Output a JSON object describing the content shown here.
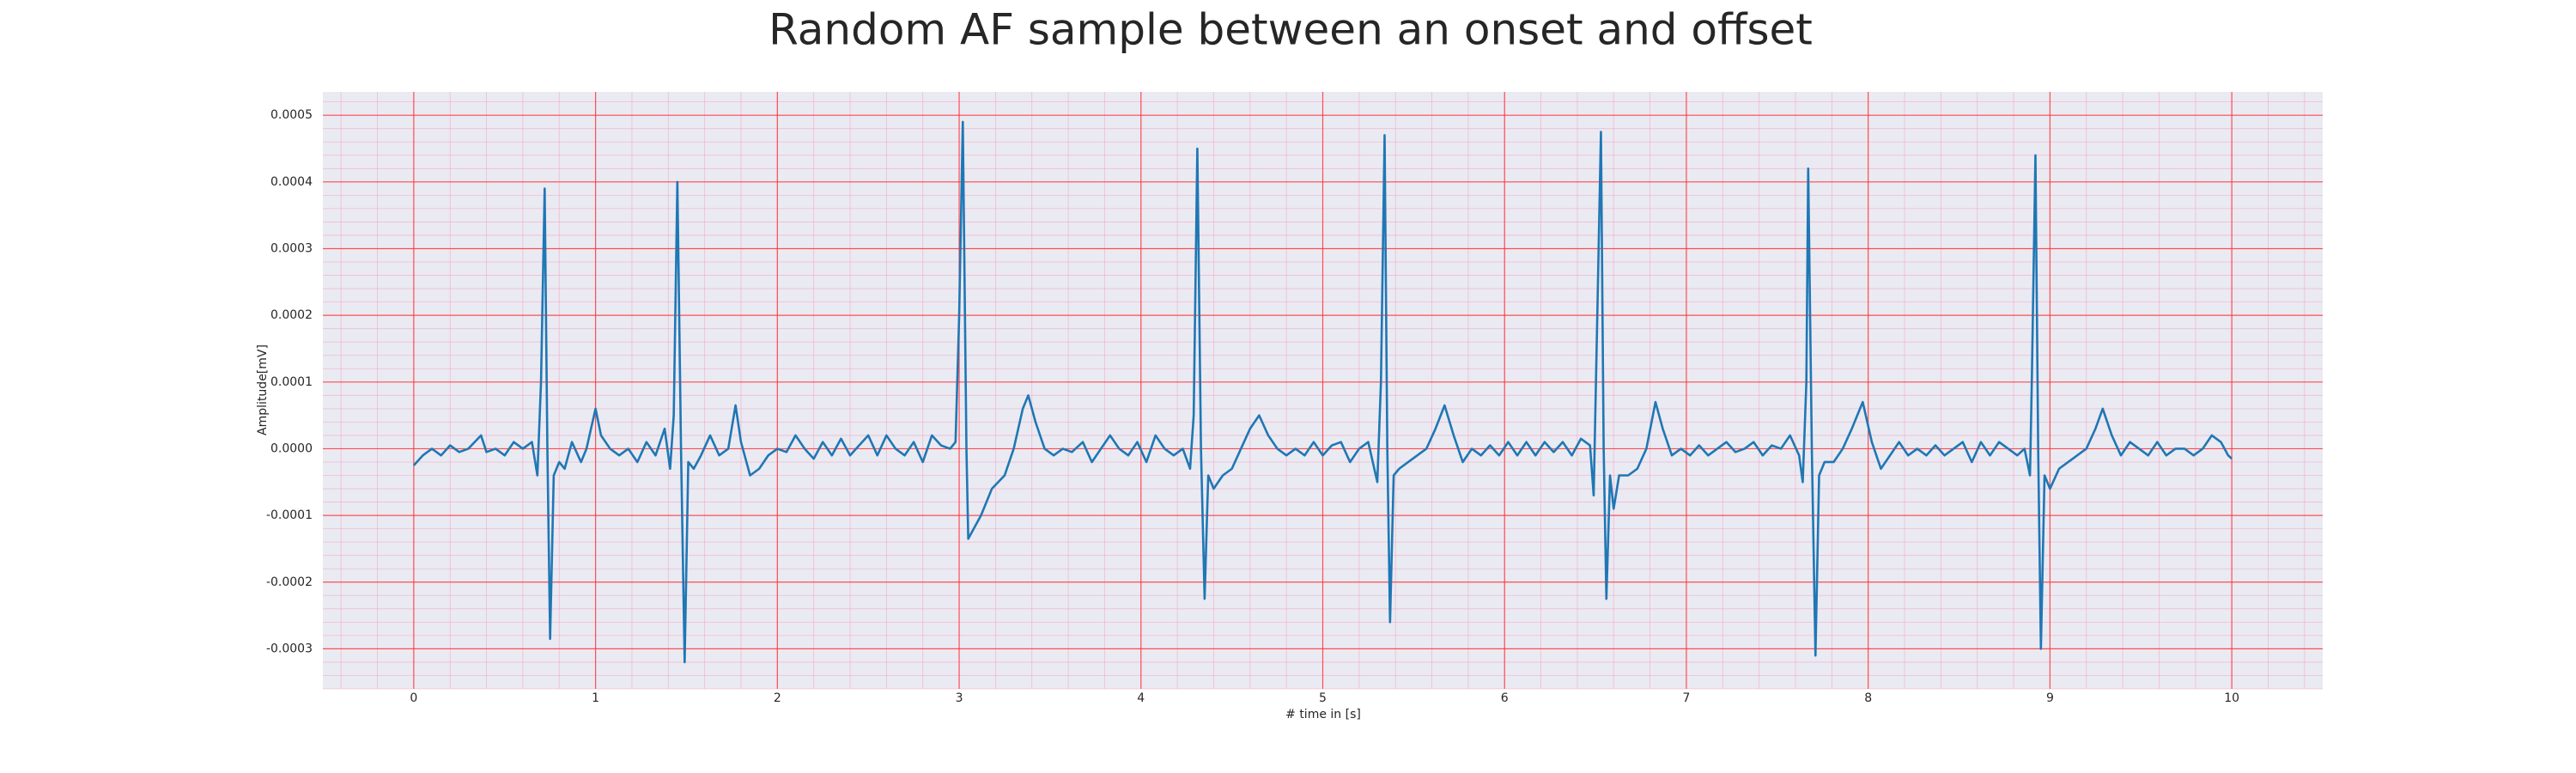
{
  "chart_data": {
    "type": "line",
    "title": "Random AF sample between an onset and offset",
    "xlabel": "# time in [s]",
    "ylabel": "Amplitude[mV]",
    "color": "#1f77b4",
    "xlim": [
      -0.5,
      10.5
    ],
    "ylim": [
      -0.00036,
      0.000535
    ],
    "xticks": [
      0,
      1,
      2,
      3,
      4,
      5,
      6,
      7,
      8,
      9,
      10
    ],
    "yticks": [
      {
        "value": -0.0003,
        "label": "-0.0003"
      },
      {
        "value": -0.0002,
        "label": "-0.0002"
      },
      {
        "value": -0.0001,
        "label": "-0.0001"
      },
      {
        "value": 0,
        "label": "0.0000"
      },
      {
        "value": 0.0001,
        "label": "0.0001"
      },
      {
        "value": 0.0002,
        "label": "0.0002"
      },
      {
        "value": 0.0003,
        "label": "0.0003"
      },
      {
        "value": 0.0004,
        "label": "0.0004"
      },
      {
        "value": 0.0005,
        "label": "0.0005"
      }
    ],
    "grid": true,
    "minor_grid": true,
    "minor_divisions": 5,
    "x": [
      0.0,
      0.05,
      0.1,
      0.15,
      0.2,
      0.25,
      0.3,
      0.37,
      0.4,
      0.45,
      0.5,
      0.55,
      0.6,
      0.65,
      0.68,
      0.7,
      0.72,
      0.735,
      0.75,
      0.77,
      0.8,
      0.83,
      0.87,
      0.92,
      0.95,
      1.0,
      1.03,
      1.08,
      1.13,
      1.18,
      1.23,
      1.28,
      1.33,
      1.38,
      1.41,
      1.43,
      1.45,
      1.47,
      1.49,
      1.51,
      1.54,
      1.58,
      1.63,
      1.68,
      1.73,
      1.77,
      1.8,
      1.85,
      1.9,
      1.95,
      2.0,
      2.05,
      2.1,
      2.15,
      2.2,
      2.25,
      2.3,
      2.35,
      2.4,
      2.45,
      2.5,
      2.55,
      2.6,
      2.65,
      2.7,
      2.75,
      2.8,
      2.85,
      2.9,
      2.95,
      2.98,
      3.0,
      3.02,
      3.04,
      3.05,
      3.08,
      3.12,
      3.18,
      3.25,
      3.3,
      3.35,
      3.38,
      3.42,
      3.47,
      3.52,
      3.57,
      3.62,
      3.68,
      3.73,
      3.78,
      3.83,
      3.88,
      3.93,
      3.98,
      4.03,
      4.08,
      4.13,
      4.18,
      4.23,
      4.27,
      4.29,
      4.31,
      4.33,
      4.35,
      4.37,
      4.4,
      4.45,
      4.5,
      4.55,
      4.6,
      4.65,
      4.7,
      4.75,
      4.8,
      4.85,
      4.9,
      4.95,
      5.0,
      5.05,
      5.1,
      5.15,
      5.2,
      5.25,
      5.3,
      5.32,
      5.34,
      5.355,
      5.37,
      5.39,
      5.42,
      5.47,
      5.52,
      5.57,
      5.62,
      5.67,
      5.72,
      5.77,
      5.82,
      5.87,
      5.92,
      5.97,
      6.02,
      6.07,
      6.12,
      6.17,
      6.22,
      6.27,
      6.32,
      6.37,
      6.42,
      6.47,
      6.49,
      6.51,
      6.53,
      6.545,
      6.56,
      6.58,
      6.6,
      6.63,
      6.68,
      6.73,
      6.78,
      6.83,
      6.87,
      6.92,
      6.97,
      7.02,
      7.07,
      7.12,
      7.17,
      7.22,
      7.27,
      7.32,
      7.37,
      7.42,
      7.47,
      7.52,
      7.57,
      7.62,
      7.64,
      7.66,
      7.67,
      7.69,
      7.71,
      7.73,
      7.76,
      7.81,
      7.86,
      7.91,
      7.97,
      8.02,
      8.07,
      8.12,
      8.17,
      8.22,
      8.27,
      8.32,
      8.37,
      8.42,
      8.47,
      8.52,
      8.57,
      8.62,
      8.67,
      8.72,
      8.77,
      8.82,
      8.86,
      8.89,
      8.9,
      8.92,
      8.935,
      8.95,
      8.97,
      9.0,
      9.05,
      9.1,
      9.15,
      9.2,
      9.25,
      9.29,
      9.34,
      9.39,
      9.44,
      9.49,
      9.54,
      9.59,
      9.64,
      9.69,
      9.74,
      9.79,
      9.84,
      9.89,
      9.94,
      9.98,
      10.0
    ],
    "values": [
      -2.5e-05,
      -1e-05,
      0,
      -1e-05,
      5e-06,
      -5e-06,
      0,
      2e-05,
      -5e-06,
      0,
      -1e-05,
      1e-05,
      0,
      1e-05,
      -4e-05,
      0.0001,
      0.00039,
      0,
      -0.000285,
      -4e-05,
      -2e-05,
      -3e-05,
      1e-05,
      -2e-05,
      0,
      6e-05,
      2e-05,
      0,
      -1e-05,
      0,
      -2e-05,
      1e-05,
      -1e-05,
      3e-05,
      -3e-05,
      5e-05,
      0.0004,
      0,
      -0.00032,
      -2e-05,
      -3e-05,
      -1e-05,
      2e-05,
      -1e-05,
      0,
      6.5e-05,
      1e-05,
      -4e-05,
      -3e-05,
      -1e-05,
      0,
      -5e-06,
      2e-05,
      0,
      -1.5e-05,
      1e-05,
      -1e-05,
      1.5e-05,
      -1e-05,
      5e-06,
      2e-05,
      -1e-05,
      2e-05,
      0,
      -1e-05,
      1e-05,
      -2e-05,
      2e-05,
      5e-06,
      0,
      1e-05,
      0.0002,
      0.00049,
      0,
      -0.000135,
      -0.00012,
      -0.0001,
      -6e-05,
      -4e-05,
      0,
      6e-05,
      8e-05,
      4e-05,
      0,
      -1e-05,
      0,
      -5e-06,
      1e-05,
      -2e-05,
      0,
      2e-05,
      0,
      -1e-05,
      1e-05,
      -2e-05,
      2e-05,
      0,
      -1e-05,
      0,
      -3e-05,
      5e-05,
      0.00045,
      0,
      -0.000225,
      -4e-05,
      -6e-05,
      -4e-05,
      -3e-05,
      0,
      3e-05,
      5e-05,
      2e-05,
      0,
      -1e-05,
      0,
      -1e-05,
      1e-05,
      -1e-05,
      5e-06,
      1e-05,
      -2e-05,
      0,
      1e-05,
      -5e-05,
      0.0001,
      0.00047,
      0,
      -0.00026,
      -4e-05,
      -3e-05,
      -2e-05,
      -1e-05,
      0,
      3e-05,
      6.5e-05,
      2e-05,
      -2e-05,
      0,
      -1e-05,
      5e-06,
      -1e-05,
      1e-05,
      -1e-05,
      1e-05,
      -1e-05,
      1e-05,
      -5e-06,
      1e-05,
      -1e-05,
      1.5e-05,
      5e-06,
      -7e-05,
      0.0002,
      0.000475,
      0,
      -0.000225,
      -4e-05,
      -9e-05,
      -4e-05,
      -4e-05,
      -3e-05,
      0,
      7e-05,
      3e-05,
      -1e-05,
      0,
      -1e-05,
      5e-06,
      -1e-05,
      0,
      1e-05,
      -5e-06,
      0,
      1e-05,
      -1e-05,
      5e-06,
      0,
      2e-05,
      -1e-05,
      -5e-05,
      0.0001,
      0.00042,
      0,
      -0.00031,
      -4e-05,
      -2e-05,
      -2e-05,
      0,
      3e-05,
      7e-05,
      1e-05,
      -3e-05,
      -1e-05,
      1e-05,
      -1e-05,
      0,
      -1e-05,
      5e-06,
      -1e-05,
      0,
      1e-05,
      -2e-05,
      1e-05,
      -1e-05,
      1e-05,
      0,
      -1e-05,
      0,
      -4e-05,
      0.0001,
      0.00044,
      0,
      -0.0003,
      -4e-05,
      -6e-05,
      -3e-05,
      -2e-05,
      -1e-05,
      0,
      3e-05,
      6e-05,
      2e-05,
      -1e-05,
      1e-05,
      0,
      -1e-05,
      1e-05,
      -1e-05,
      0,
      0,
      -1e-05,
      0,
      2e-05,
      1e-05,
      -1e-05,
      -1.5e-05
    ]
  }
}
